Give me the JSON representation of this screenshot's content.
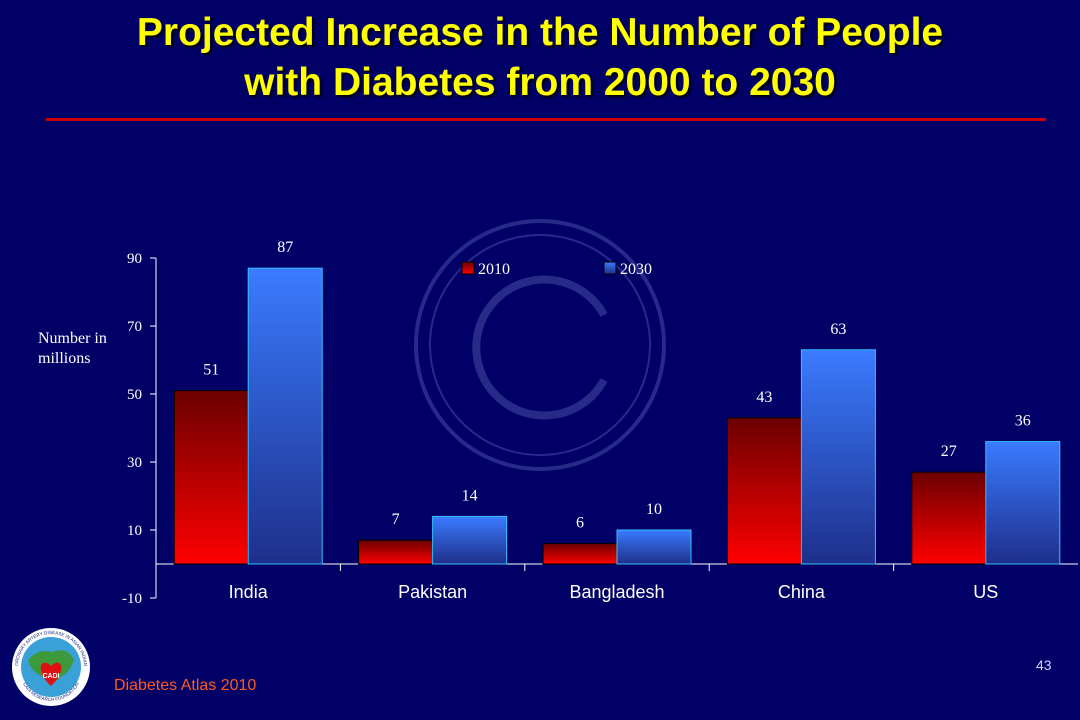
{
  "slide": {
    "title_line1": "Projected Increase in the Number of People",
    "title_line2": "with Diabetes from 2000 to 2030",
    "slide_number": "43",
    "source": "Diabetes Atlas 2010",
    "logo_text_top": "CORONARY ARTERY DISEASE IN ASIAN INDIANS",
    "logo_text_center": "CADI",
    "logo_text_bottom": "CADI RESEARCH FOUNDATION",
    "watermark": "copyright-icon"
  },
  "colors": {
    "background": "#000066",
    "title": "#ffff00",
    "rule": "#cc0000",
    "series_2010_top": "#6b0000",
    "series_2010_bottom": "#ff0000",
    "series_2030_top": "#3a7bff",
    "series_2030_bottom": "#1e2f8a",
    "text": "#ffffff",
    "source": "#ff5a1f"
  },
  "chart_data": {
    "type": "bar",
    "title": "",
    "ylabel": "Number in millions",
    "xlabel": "",
    "categories": [
      "India",
      "Pakistan",
      "Bangladesh",
      "China",
      "US"
    ],
    "series": [
      {
        "name": "2010",
        "values": [
          51,
          7,
          6,
          43,
          27
        ]
      },
      {
        "name": "2030",
        "values": [
          87,
          14,
          10,
          63,
          36
        ]
      }
    ],
    "ylim": [
      -10,
      90
    ],
    "yticks": [
      -10,
      10,
      30,
      50,
      70,
      90
    ],
    "legend_position": "top-center",
    "grid": false
  }
}
